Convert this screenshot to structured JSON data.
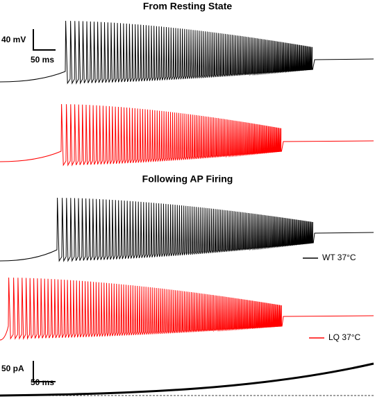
{
  "panels": [
    {
      "title": "From Resting State"
    },
    {
      "title": "Following AP Firing"
    }
  ],
  "scale_bars": {
    "voltage": {
      "y_label": "40 mV",
      "x_label": "50 ms"
    },
    "current": {
      "y_label": "50 pA",
      "x_label": "50 ms"
    }
  },
  "legend": [
    {
      "label": "WT 37°C",
      "color": "#000000"
    },
    {
      "label": "LQ 37°C",
      "color": "#ff0000"
    }
  ]
}
